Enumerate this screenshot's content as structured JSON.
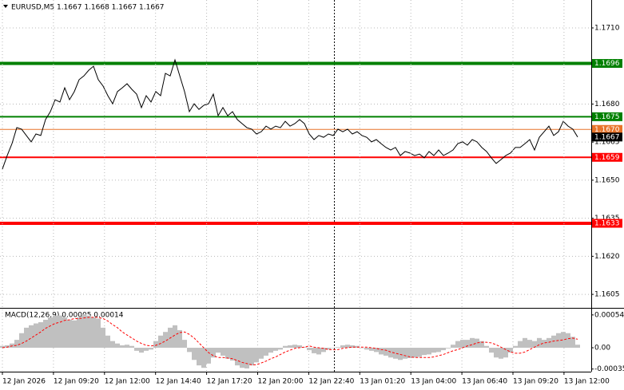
{
  "chart_data": [
    {
      "type": "line",
      "title": "EURUSD,M5  1.1667 1.1668 1.1667 1.1667",
      "color": "#000000",
      "grid": true,
      "ylim": [
        1.16,
        1.1721
      ],
      "yticks": [
        {
          "value": 1.171,
          "label": "1.1710"
        },
        {
          "value": 1.168,
          "label": "1.1680"
        },
        1.1665,
        {
          "value": 1.165,
          "label": "1.1650"
        },
        1.1635,
        {
          "value": 1.162,
          "label": "1.1620"
        },
        1.1605
      ],
      "levels": [
        {
          "value": 1.1696,
          "color": "#008000",
          "width": 4
        },
        {
          "value": 1.1675,
          "color": "#008000",
          "width": 2
        },
        {
          "value": 1.167,
          "label": "1.1670",
          "color": "#e8742a",
          "width": 1
        },
        {
          "value": 1.1659,
          "color": "#ff0000",
          "width": 2
        },
        {
          "value": 1.1633,
          "color": "#ff0000",
          "width": 4
        }
      ],
      "last_price": 1.1667,
      "values": [
        1.16544,
        1.16597,
        1.16644,
        1.16707,
        1.16701,
        1.16676,
        1.16651,
        1.16682,
        1.16676,
        1.16739,
        1.1677,
        1.16817,
        1.16808,
        1.16864,
        1.16817,
        1.16849,
        1.16896,
        1.16911,
        1.16933,
        1.16949,
        1.16896,
        1.16871,
        1.16833,
        1.16801,
        1.16849,
        1.16864,
        1.1688,
        1.16858,
        1.16839,
        1.16786,
        1.16833,
        1.16808,
        1.16849,
        1.16833,
        1.16921,
        1.16911,
        1.16974,
        1.16911,
        1.16849,
        1.1677,
        1.16801,
        1.16779,
        1.16795,
        1.16801,
        1.16839,
        1.16754,
        1.16786,
        1.16754,
        1.1677,
        1.16739,
        1.16723,
        1.16707,
        1.16701,
        1.16682,
        1.16691,
        1.16713,
        1.16701,
        1.16713,
        1.16707,
        1.16732,
        1.16713,
        1.16723,
        1.16739,
        1.16723,
        1.16682,
        1.1666,
        1.16676,
        1.16669,
        1.16682,
        1.16676,
        1.16701,
        1.16691,
        1.16701,
        1.16682,
        1.16691,
        1.16676,
        1.16669,
        1.16651,
        1.1666,
        1.16644,
        1.16629,
        1.16619,
        1.16629,
        1.16597,
        1.16613,
        1.16607,
        1.16597,
        1.16603,
        1.16588,
        1.16613,
        1.16597,
        1.16619,
        1.16597,
        1.16607,
        1.16619,
        1.16644,
        1.16651,
        1.16638,
        1.1666,
        1.16651,
        1.16629,
        1.16613,
        1.16588,
        1.16566,
        1.16581,
        1.16597,
        1.16607,
        1.16629,
        1.16629,
        1.16644,
        1.1666,
        1.16619,
        1.16669,
        1.16691,
        1.16713,
        1.16676,
        1.16691,
        1.16732,
        1.16713,
        1.16701,
        1.1667
      ]
    },
    {
      "type": "macd",
      "title": "MACD(12,26,9) 0.00005 0.00014",
      "grid": true,
      "ylim": [
        -0.00038,
        0.00063
      ],
      "yticks": [
        0.00054,
        {
          "value": 0,
          "label": "0.00"
        },
        -0.00035
      ],
      "xtick_labels": [
        "12 Jan 2026",
        "12 Jan 09:20",
        "12 Jan 12:00",
        "12 Jan 14:40",
        "12 Jan 17:20",
        "12 Jan 20:00",
        "12 Jan 22:40",
        "13 Jan 01:20",
        "13 Jan 04:00",
        "13 Jan 06:40",
        "13 Jan 09:20",
        "13 Jan 12:00"
      ],
      "histogram": {
        "color": "#c0c0c0",
        "values": [
          3e-05,
          4e-05,
          7e-05,
          0.00013,
          0.00024,
          0.00033,
          0.00037,
          0.0004,
          0.00042,
          0.00046,
          0.0005,
          0.00053,
          0.00053,
          0.0005,
          0.00046,
          0.00045,
          0.0005,
          0.00055,
          0.00053,
          0.0005,
          0.00048,
          0.00033,
          0.0002,
          0.00011,
          7e-05,
          4e-05,
          5e-05,
          3e-05,
          -5e-05,
          -8e-05,
          -5e-05,
          -3e-05,
          0.00011,
          0.0002,
          0.00026,
          0.00033,
          0.00037,
          0.00029,
          0.00013,
          -7e-05,
          -0.0002,
          -0.00029,
          -0.00033,
          -0.00026,
          -0.00016,
          -8e-05,
          -0.00013,
          -0.00018,
          -0.00021,
          -0.00029,
          -0.00033,
          -0.00034,
          -0.00029,
          -0.00024,
          -0.00018,
          -0.00013,
          -8e-05,
          -5e-05,
          -3e-05,
          3e-05,
          4e-05,
          5e-05,
          4e-05,
          1e-05,
          -4e-05,
          -9e-05,
          -0.00011,
          -7e-05,
          -3e-05,
          0,
          1e-05,
          4e-05,
          5e-05,
          4e-05,
          3e-05,
          0,
          -3e-05,
          -5e-05,
          -7e-05,
          -0.00011,
          -0.00013,
          -0.00016,
          -0.00018,
          -0.0002,
          -0.00018,
          -0.00017,
          -0.00016,
          -0.00015,
          -0.00012,
          -0.00011,
          -8e-05,
          -7e-05,
          -4e-05,
          -1e-05,
          5e-05,
          0.00011,
          0.00013,
          0.00013,
          0.00016,
          0.00015,
          0.00011,
          3e-05,
          -8e-05,
          -0.00016,
          -0.00018,
          -0.00016,
          -8e-05,
          3e-05,
          0.00011,
          0.00016,
          0.00013,
          0.00011,
          0.00016,
          0.00013,
          0.00016,
          0.0002,
          0.00024,
          0.00026,
          0.00024,
          0.00018,
          5e-05
        ]
      },
      "signal": {
        "color": "#ff0000",
        "values": [
          0,
          1e-05,
          3e-05,
          4e-05,
          7e-05,
          0.00011,
          0.00016,
          0.00021,
          0.00026,
          0.00032,
          0.00036,
          0.0004,
          0.00042,
          0.00045,
          0.00046,
          0.00048,
          0.00048,
          0.00049,
          0.0005,
          0.0005,
          0.0005,
          0.00048,
          0.00044,
          0.00038,
          0.00033,
          0.00026,
          0.00021,
          0.00016,
          0.00011,
          7e-05,
          4e-05,
          3e-05,
          4e-05,
          7e-05,
          0.00011,
          0.00016,
          0.00021,
          0.00025,
          0.00026,
          0.00022,
          0.00016,
          8e-05,
          0,
          -8e-05,
          -0.00013,
          -0.00016,
          -0.00016,
          -0.00017,
          -0.00018,
          -0.00021,
          -0.00024,
          -0.00026,
          -0.00028,
          -0.00028,
          -0.00025,
          -0.00022,
          -0.00018,
          -0.00015,
          -0.00011,
          -7e-05,
          -4e-05,
          -1e-05,
          0,
          1e-05,
          3e-05,
          1e-05,
          0,
          -1e-05,
          -3e-05,
          -3e-05,
          -3e-05,
          -1e-05,
          0,
          1e-05,
          1e-05,
          1e-05,
          1e-05,
          0,
          -1e-05,
          -3e-05,
          -4e-05,
          -7e-05,
          -9e-05,
          -0.00011,
          -0.00013,
          -0.00015,
          -0.00016,
          -0.00016,
          -0.00016,
          -0.00016,
          -0.00015,
          -0.00013,
          -0.00011,
          -8e-05,
          -5e-05,
          -3e-05,
          0,
          3e-05,
          5e-05,
          8e-05,
          9e-05,
          9e-05,
          8e-05,
          5e-05,
          1e-05,
          -3e-05,
          -7e-05,
          -9e-05,
          -9e-05,
          -7e-05,
          -3e-05,
          1e-05,
          5e-05,
          8e-05,
          9e-05,
          0.00011,
          0.00012,
          0.00013,
          0.00015,
          0.00016,
          0.00014
        ]
      }
    }
  ]
}
